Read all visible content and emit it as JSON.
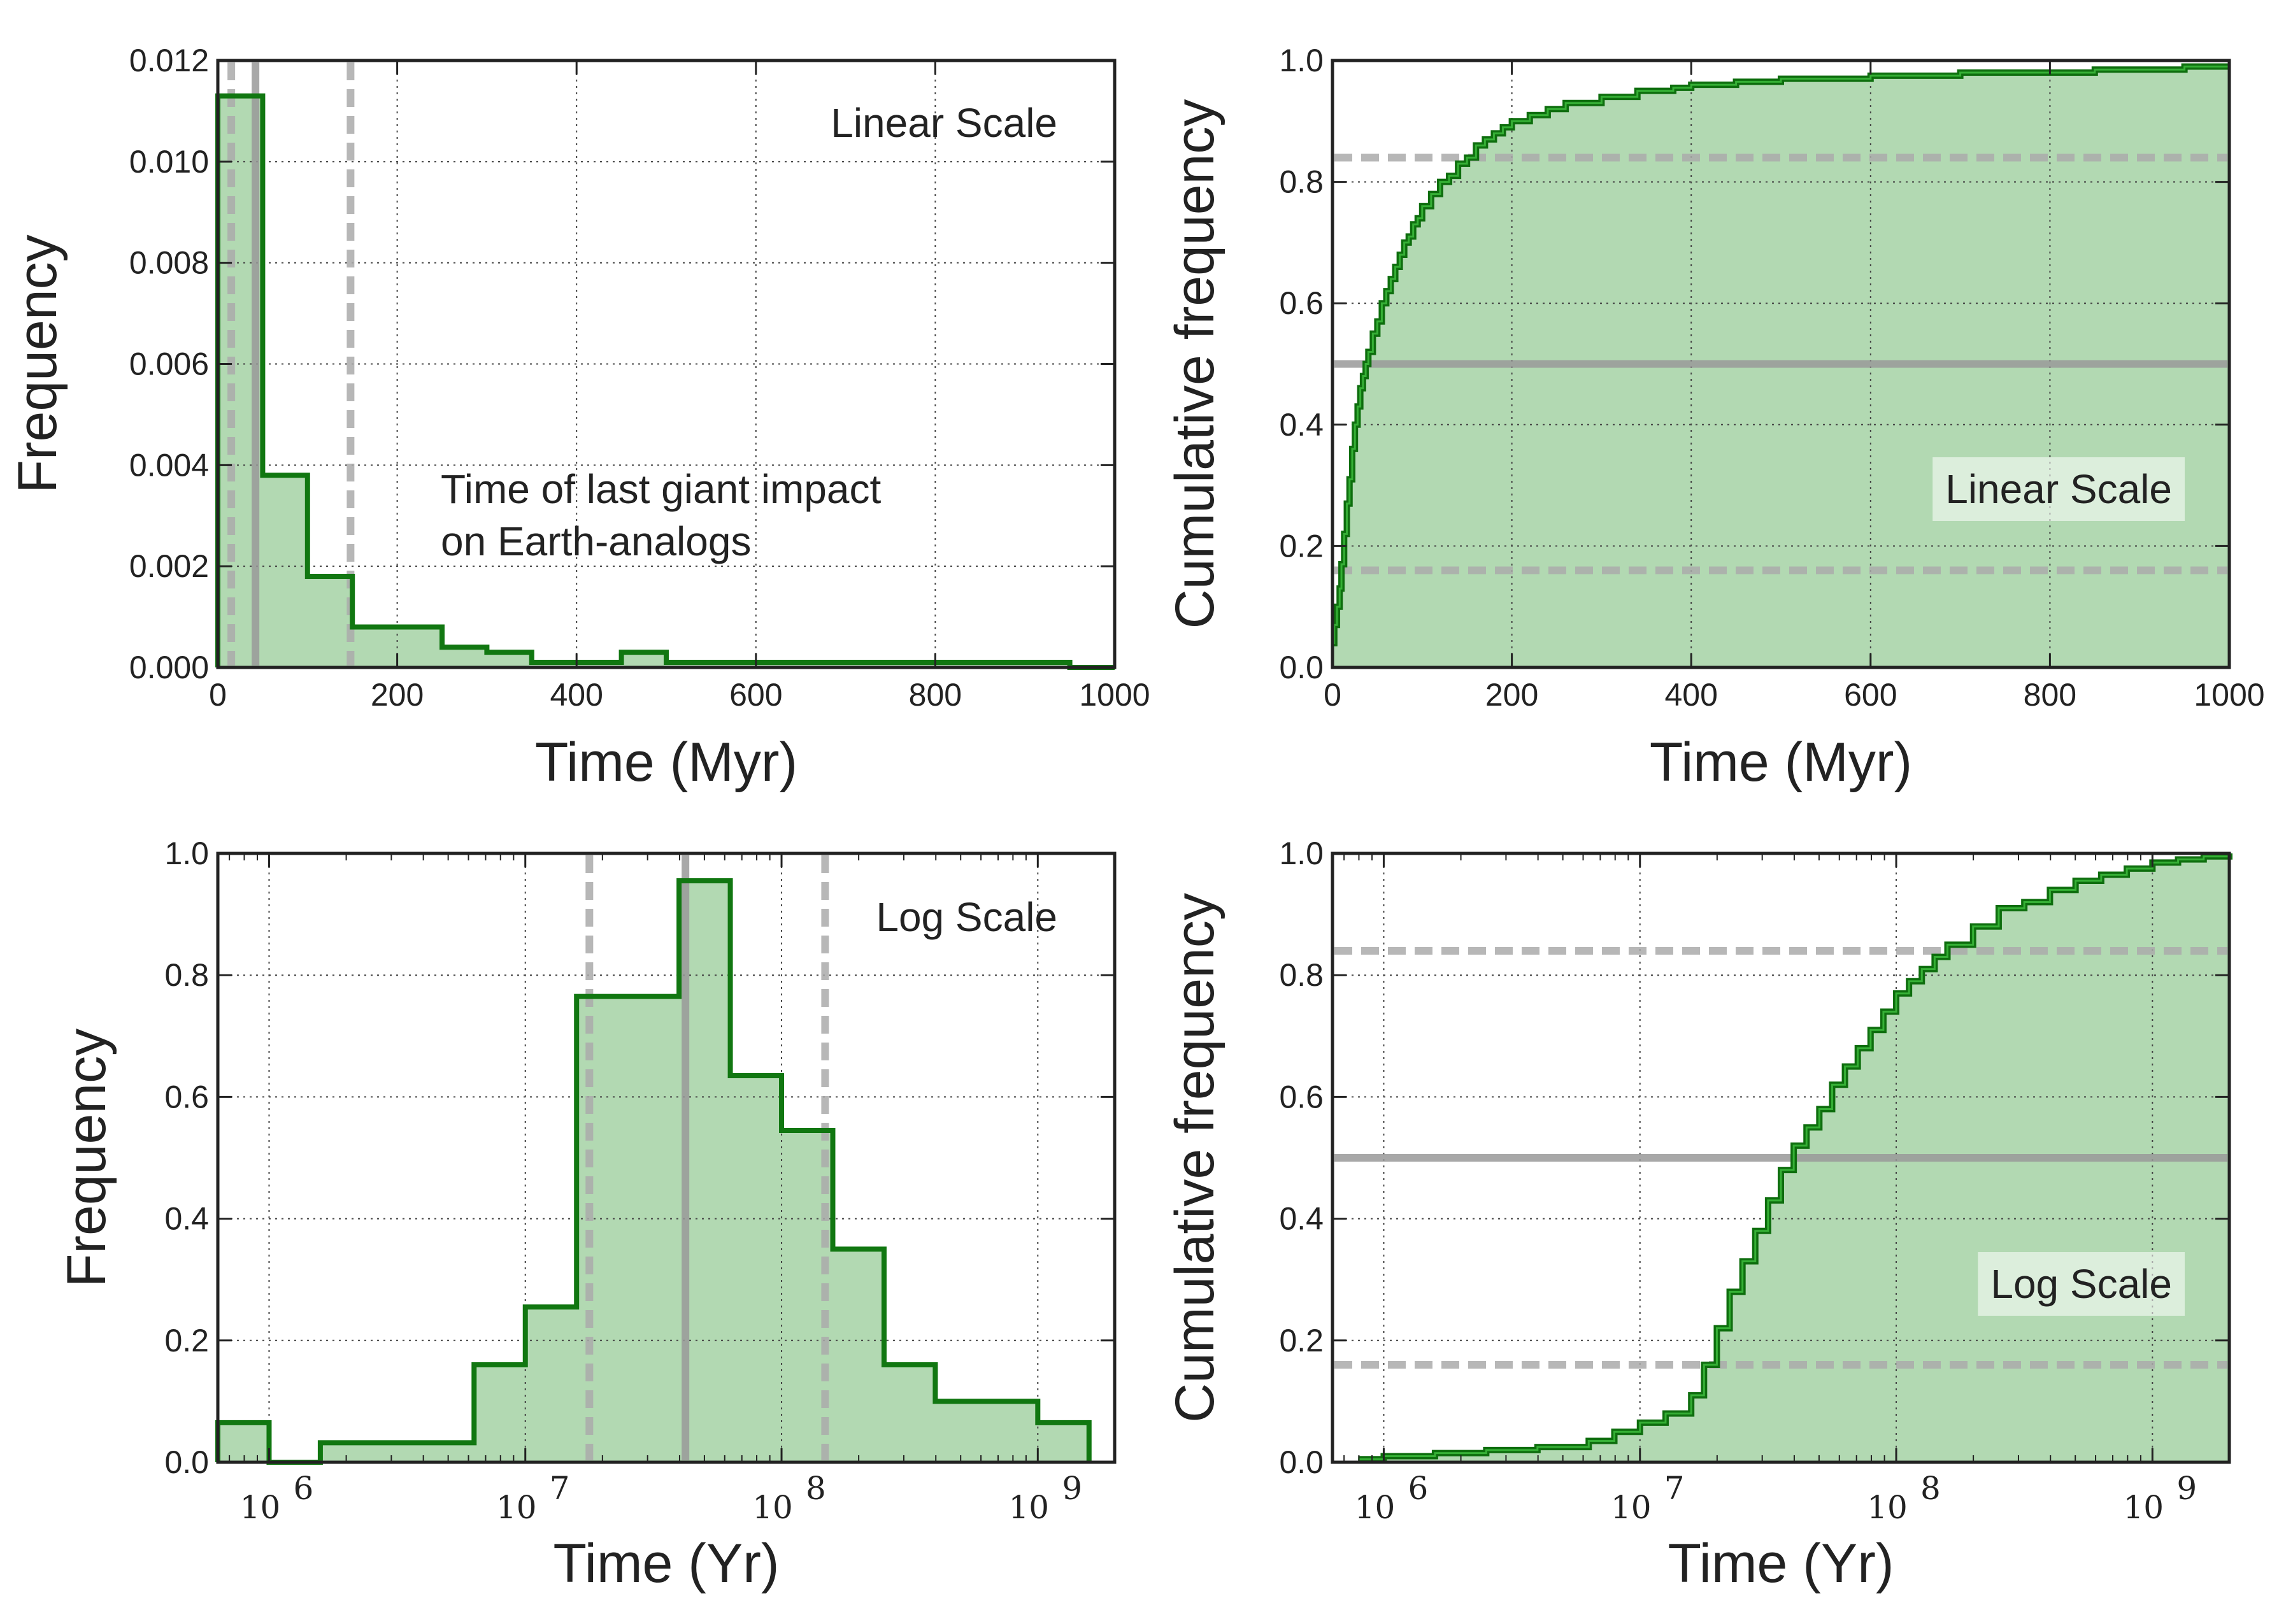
{
  "chart_data": [
    {
      "id": "top-left",
      "type": "histogram",
      "scale": "linear",
      "title": "",
      "annotation": "Linear Scale",
      "note_lines": [
        "Time of last giant impact",
        "on Earth-analogs"
      ],
      "xlabel": "Time (Myr)",
      "ylabel": "Frequency",
      "xlim": [
        0,
        1000
      ],
      "ylim": [
        0,
        0.012
      ],
      "xticks": [
        0,
        200,
        400,
        600,
        800,
        1000
      ],
      "xtick_labels": [
        "0",
        "200",
        "400",
        "600",
        "800",
        "1000"
      ],
      "yticks": [
        0,
        0.002,
        0.004,
        0.006,
        0.008,
        0.01,
        0.012
      ],
      "ytick_labels": [
        "0.000",
        "0.002",
        "0.004",
        "0.006",
        "0.008",
        "0.010",
        "0.012"
      ],
      "grid": true,
      "bin_edges": [
        0,
        50,
        100,
        150,
        200,
        250,
        300,
        350,
        400,
        450,
        500,
        550,
        600,
        650,
        700,
        750,
        800,
        850,
        900,
        950,
        1000
      ],
      "values": [
        0.0113,
        0.0038,
        0.0018,
        0.0008,
        0.0008,
        0.0004,
        0.0003,
        0.0001,
        0.0001,
        0.0003,
        0.0001,
        0.0001,
        0.0001,
        0.0001,
        0.0001,
        0.0001,
        0.0001,
        0.0001,
        0.0001,
        0.0
      ],
      "vlines": [
        {
          "x": 42,
          "style": "solid"
        },
        {
          "x": 15,
          "style": "dashed"
        },
        {
          "x": 148,
          "style": "dashed"
        }
      ],
      "hlines": []
    },
    {
      "id": "top-right",
      "type": "cumulative",
      "scale": "linear",
      "title": "",
      "annotation": "Linear Scale",
      "annotation_boxed": true,
      "xlabel": "Time (Myr)",
      "ylabel": "Cumulative frequency",
      "xlim": [
        0,
        1000
      ],
      "ylim": [
        0,
        1.0
      ],
      "xticks": [
        0,
        200,
        400,
        600,
        800,
        1000
      ],
      "xtick_labels": [
        "0",
        "200",
        "400",
        "600",
        "800",
        "1000"
      ],
      "yticks": [
        0,
        0.2,
        0.4,
        0.6,
        0.8,
        1.0
      ],
      "ytick_labels": [
        "0.0",
        "0.2",
        "0.4",
        "0.6",
        "0.8",
        "1.0"
      ],
      "grid": true,
      "x": [
        0,
        2,
        5,
        8,
        10,
        13,
        16,
        19,
        22,
        25,
        28,
        31,
        34,
        37,
        40,
        45,
        50,
        55,
        60,
        65,
        70,
        75,
        80,
        85,
        90,
        95,
        100,
        110,
        120,
        130,
        140,
        150,
        160,
        170,
        180,
        190,
        200,
        220,
        240,
        260,
        280,
        300,
        320,
        340,
        360,
        380,
        400,
        450,
        500,
        550,
        600,
        650,
        700,
        750,
        800,
        850,
        900,
        950,
        1000
      ],
      "values": [
        0.04,
        0.07,
        0.1,
        0.13,
        0.17,
        0.22,
        0.27,
        0.31,
        0.36,
        0.4,
        0.43,
        0.46,
        0.48,
        0.5,
        0.52,
        0.55,
        0.57,
        0.6,
        0.62,
        0.64,
        0.66,
        0.68,
        0.7,
        0.71,
        0.73,
        0.74,
        0.76,
        0.78,
        0.8,
        0.81,
        0.83,
        0.84,
        0.86,
        0.87,
        0.88,
        0.89,
        0.9,
        0.91,
        0.92,
        0.93,
        0.93,
        0.94,
        0.94,
        0.95,
        0.95,
        0.955,
        0.96,
        0.965,
        0.97,
        0.97,
        0.975,
        0.975,
        0.98,
        0.98,
        0.98,
        0.985,
        0.985,
        0.99,
        0.99
      ],
      "vlines": [],
      "hlines": [
        {
          "y": 0.5,
          "style": "solid"
        },
        {
          "y": 0.84,
          "style": "dashed"
        },
        {
          "y": 0.16,
          "style": "dashed"
        }
      ]
    },
    {
      "id": "bottom-left",
      "type": "histogram",
      "scale": "log",
      "title": "",
      "annotation": "Log Scale",
      "xlabel": "Time (Yr)",
      "ylabel": "Frequency",
      "xlim_log10": [
        5.8,
        9.3
      ],
      "ylim": [
        0,
        1.0
      ],
      "xticks_log10": [
        6,
        7,
        8,
        9
      ],
      "xtick_labels": [
        "10",
        "10",
        "10",
        "10"
      ],
      "xtick_exponents": [
        "6",
        "7",
        "8",
        "9"
      ],
      "yticks": [
        0,
        0.2,
        0.4,
        0.6,
        0.8,
        1.0
      ],
      "ytick_labels": [
        "0.0",
        "0.2",
        "0.4",
        "0.6",
        "0.8",
        "1.0"
      ],
      "grid": true,
      "bin_edges_log10": [
        5.8,
        6.0,
        6.2,
        6.4,
        6.6,
        6.8,
        7.0,
        7.2,
        7.4,
        7.6,
        7.8,
        8.0,
        8.2,
        8.4,
        8.6,
        8.8,
        9.0,
        9.2
      ],
      "values": [
        0.065,
        0.0,
        0.032,
        0.032,
        0.032,
        0.16,
        0.255,
        0.765,
        0.765,
        0.955,
        0.635,
        0.545,
        0.35,
        0.16,
        0.1,
        0.1,
        0.065
      ],
      "vlines_log10": [
        {
          "x": 7.625,
          "style": "solid"
        },
        {
          "x": 7.25,
          "style": "dashed"
        },
        {
          "x": 8.17,
          "style": "dashed"
        }
      ],
      "hlines": []
    },
    {
      "id": "bottom-right",
      "type": "cumulative",
      "scale": "log",
      "title": "",
      "annotation": "Log Scale",
      "annotation_boxed": true,
      "xlabel": "Time (Yr)",
      "ylabel": "Cumulative frequency",
      "xlim_log10": [
        5.8,
        9.3
      ],
      "ylim": [
        0,
        1.0
      ],
      "xticks_log10": [
        6,
        7,
        8,
        9
      ],
      "xtick_labels": [
        "10",
        "10",
        "10",
        "10"
      ],
      "xtick_exponents": [
        "6",
        "7",
        "8",
        "9"
      ],
      "yticks": [
        0,
        0.2,
        0.4,
        0.6,
        0.8,
        1.0
      ],
      "ytick_labels": [
        "0.0",
        "0.2",
        "0.4",
        "0.6",
        "0.8",
        "1.0"
      ],
      "grid": true,
      "x_log10": [
        5.9,
        6.0,
        6.2,
        6.4,
        6.6,
        6.8,
        6.9,
        7.0,
        7.1,
        7.2,
        7.25,
        7.3,
        7.35,
        7.4,
        7.45,
        7.5,
        7.55,
        7.6,
        7.65,
        7.7,
        7.75,
        7.8,
        7.85,
        7.9,
        7.95,
        8.0,
        8.05,
        8.1,
        8.15,
        8.2,
        8.3,
        8.4,
        8.5,
        8.6,
        8.7,
        8.8,
        8.9,
        9.0,
        9.1,
        9.2,
        9.3
      ],
      "values": [
        0.005,
        0.01,
        0.015,
        0.02,
        0.025,
        0.035,
        0.05,
        0.065,
        0.08,
        0.11,
        0.16,
        0.22,
        0.28,
        0.33,
        0.38,
        0.43,
        0.48,
        0.52,
        0.55,
        0.58,
        0.62,
        0.65,
        0.68,
        0.71,
        0.74,
        0.77,
        0.79,
        0.81,
        0.83,
        0.85,
        0.88,
        0.91,
        0.92,
        0.94,
        0.955,
        0.965,
        0.975,
        0.985,
        0.99,
        0.995,
        1.0
      ],
      "vlines": [],
      "hlines": [
        {
          "y": 0.5,
          "style": "solid"
        },
        {
          "y": 0.84,
          "style": "dashed"
        },
        {
          "y": 0.16,
          "style": "dashed"
        }
      ]
    }
  ],
  "colors": {
    "fill": "#b2d9b2",
    "line": "#117711",
    "reference": "#999999"
  }
}
